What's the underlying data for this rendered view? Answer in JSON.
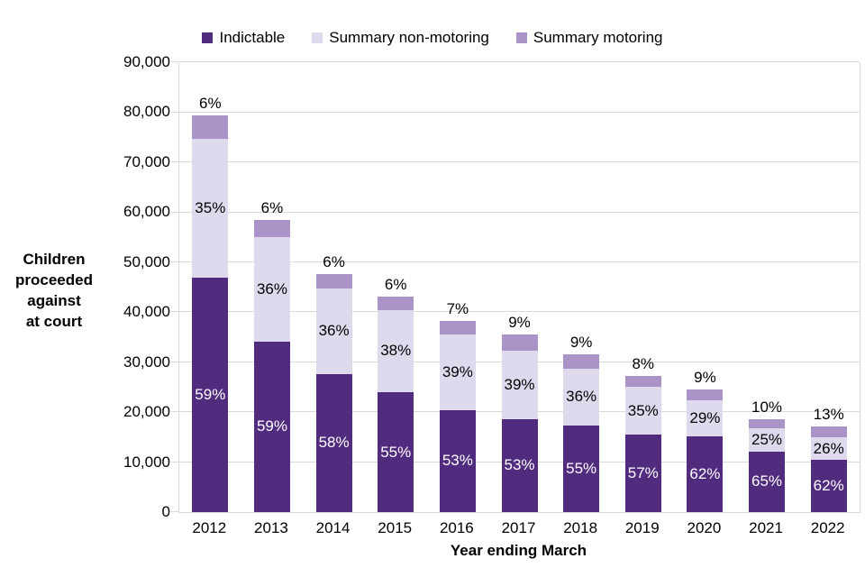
{
  "legend": {
    "items": [
      {
        "label": "Indictable",
        "color": "#512B7E"
      },
      {
        "label": "Summary non-motoring",
        "color": "#DED9EC"
      },
      {
        "label": "Summary motoring",
        "color": "#AB92C7"
      }
    ]
  },
  "y_axis": {
    "title_lines": [
      "Children",
      "proceeded",
      "against",
      "at court"
    ],
    "tick_labels": [
      "0",
      "10,000",
      "20,000",
      "30,000",
      "40,000",
      "50,000",
      "60,000",
      "70,000",
      "80,000",
      "90,000"
    ]
  },
  "x_axis": {
    "title": "Year ending March"
  },
  "chart_data": {
    "type": "bar",
    "stacked": true,
    "title": "",
    "xlabel": "Year ending March",
    "ylabel": "Children proceeded against at court",
    "ylim": [
      0,
      90000
    ],
    "ytick_step": 10000,
    "grid": true,
    "legend_position": "top",
    "categories": [
      "2012",
      "2013",
      "2014",
      "2015",
      "2016",
      "2017",
      "2018",
      "2019",
      "2020",
      "2021",
      "2022"
    ],
    "totals": [
      79400,
      58400,
      47600,
      43100,
      38200,
      35500,
      31600,
      27200,
      24500,
      18600,
      17100
    ],
    "series": [
      {
        "name": "Indictable",
        "color": "#512B7E",
        "label_color": "#ffffff",
        "pct": [
          59,
          59,
          58,
          55,
          53,
          53,
          55,
          57,
          62,
          65,
          62
        ]
      },
      {
        "name": "Summary non-motoring",
        "color": "#DED9EC",
        "label_color": "#000000",
        "pct": [
          35,
          36,
          36,
          38,
          39,
          39,
          36,
          35,
          29,
          25,
          26
        ]
      },
      {
        "name": "Summary motoring",
        "color": "#AB92C7",
        "label_color": "#000000",
        "pct": [
          6,
          6,
          6,
          6,
          7,
          9,
          9,
          8,
          9,
          10,
          13
        ]
      }
    ],
    "unit_suffix": "%"
  }
}
